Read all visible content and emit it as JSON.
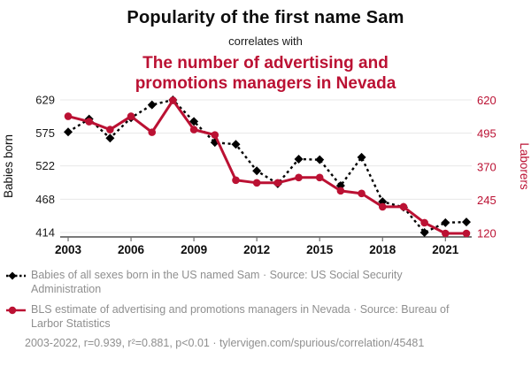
{
  "header": {
    "title": "Popularity of the first name Sam",
    "connector": "correlates with",
    "subtitle": "The number of advertising and promotions managers in Nevada"
  },
  "chart_data": {
    "type": "line",
    "x_range": [
      2003,
      2022
    ],
    "x": [
      2003,
      2004,
      2005,
      2006,
      2007,
      2008,
      2009,
      2010,
      2011,
      2012,
      2013,
      2014,
      2015,
      2016,
      2017,
      2018,
      2019,
      2020,
      2021,
      2022
    ],
    "x_ticks": [
      2003,
      2006,
      2009,
      2012,
      2015,
      2018,
      2021
    ],
    "left_axis": {
      "label": "Babies born",
      "ticks": [
        414,
        468,
        522,
        575,
        629
      ],
      "range": [
        414,
        629
      ]
    },
    "right_axis": {
      "label": "Laborers",
      "ticks": [
        120,
        245,
        370,
        495,
        620
      ],
      "range": [
        120,
        620
      ]
    },
    "grid": true,
    "legend_position": "bottom",
    "series": [
      {
        "name": "Babies of all sexes born in the US named Sam",
        "axis": "left",
        "color": "#000000",
        "style": "dashed",
        "marker": "diamond",
        "values": [
          577,
          598,
          567,
          600,
          621,
          629,
          594,
          560,
          557,
          514,
          493,
          533,
          532,
          490,
          536,
          464,
          455,
          414,
          430,
          431
        ]
      },
      {
        "name": "BLS estimate of advertising and promotions managers in Nevada",
        "axis": "right",
        "color": "#bb1133",
        "style": "solid",
        "marker": "circle",
        "values": [
          560,
          540,
          510,
          560,
          500,
          620,
          510,
          490,
          320,
          310,
          310,
          330,
          330,
          280,
          270,
          220,
          220,
          160,
          120,
          120
        ]
      }
    ]
  },
  "legend": {
    "items": [
      {
        "marker": "diamond-dashed",
        "color": "#000000",
        "label": "Babies of all sexes born in the US named Sam · Source: US Social Security Administration"
      },
      {
        "marker": "circle-solid",
        "color": "#bb1133",
        "label": "BLS estimate of advertising and promotions managers in Nevada · Source: Bureau of Larbor Statistics"
      }
    ]
  },
  "footer": {
    "stats": "2003-2022, r=0.939, r²=0.881, p<0.01 · tylervigen.com/spurious/correlation/45481"
  },
  "colors": {
    "accent_red": "#bb1133",
    "text_gray": "#8f8f8f",
    "grid": "#e8e8e8",
    "axis_line": "#2b2b2b",
    "tick_text": "#1a1a1a"
  }
}
